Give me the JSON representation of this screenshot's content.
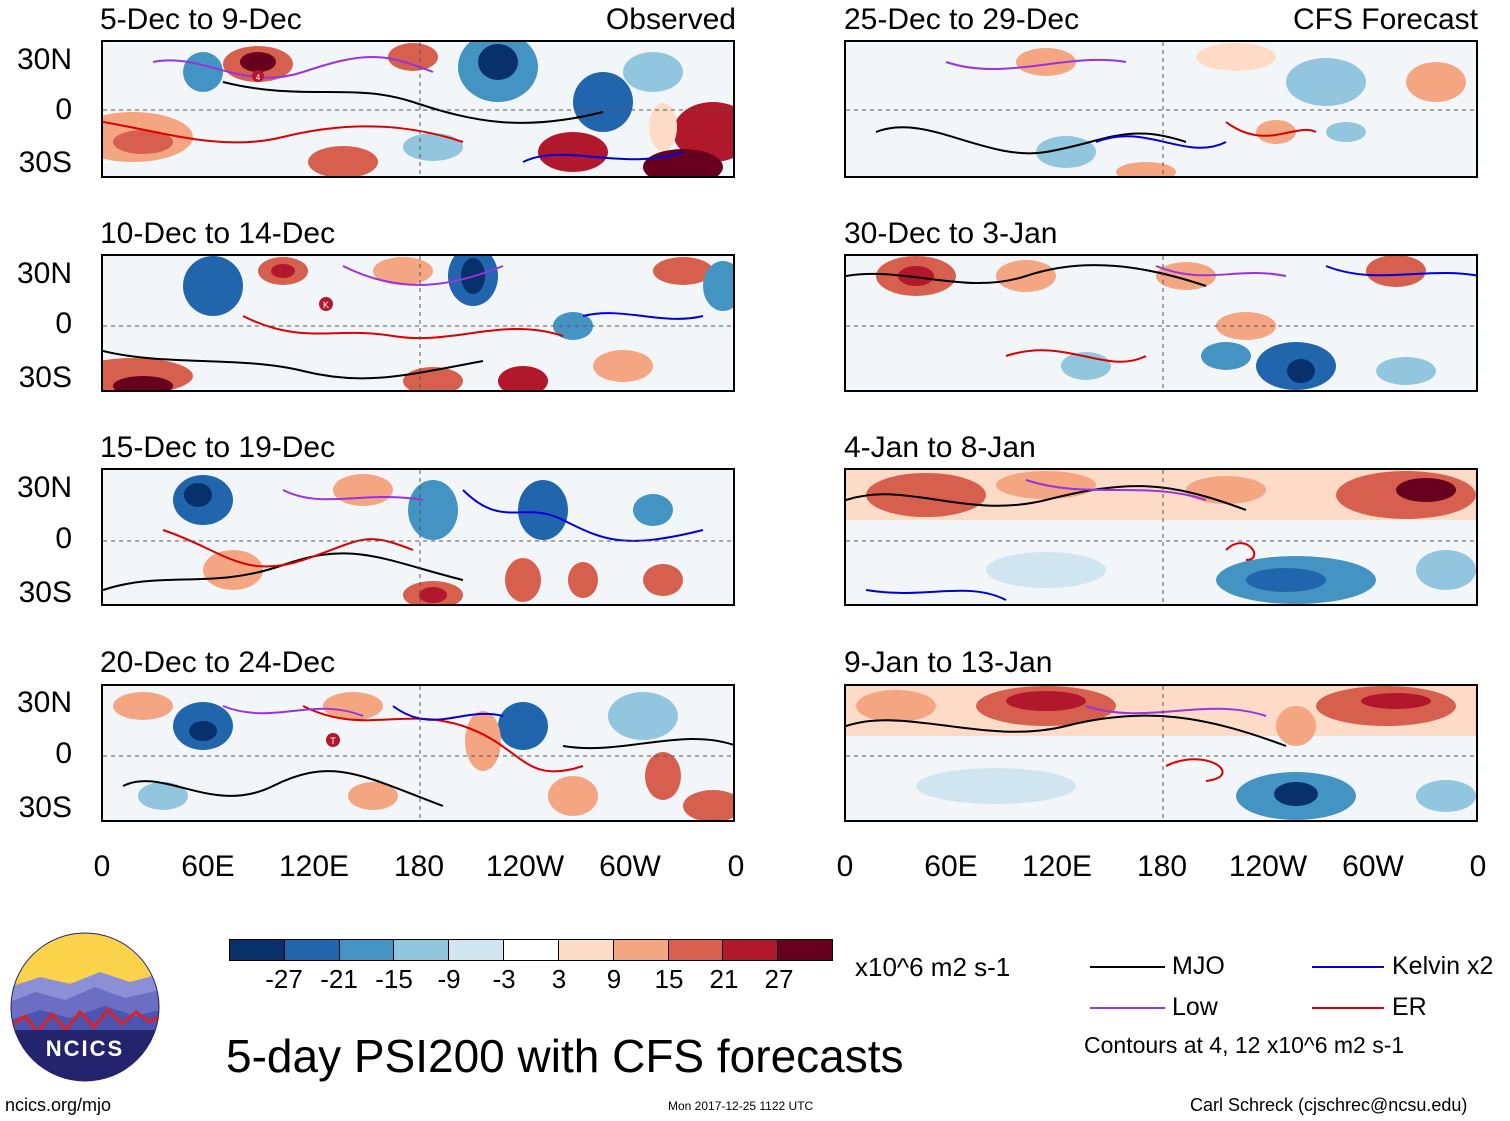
{
  "panels": {
    "left": [
      {
        "title": "5-Dec to 9-Dec",
        "label": "Observed"
      },
      {
        "title": "10-Dec to 14-Dec",
        "label": ""
      },
      {
        "title": "15-Dec to 19-Dec",
        "label": ""
      },
      {
        "title": "20-Dec to 24-Dec",
        "label": ""
      }
    ],
    "right": [
      {
        "title": "25-Dec to 29-Dec",
        "label": "CFS Forecast"
      },
      {
        "title": "30-Dec to 3-Jan",
        "label": ""
      },
      {
        "title": "4-Jan to 8-Jan",
        "label": ""
      },
      {
        "title": "9-Jan to 13-Jan",
        "label": ""
      }
    ]
  },
  "axes": {
    "y_ticks": [
      "30N",
      "0",
      "30S"
    ],
    "x_ticks": [
      "0",
      "60E",
      "120E",
      "180",
      "120W",
      "60W",
      "0"
    ]
  },
  "markers": {
    "k": "K",
    "t": "T",
    "four": "4"
  },
  "colorbar": {
    "labels": [
      "-27",
      "-21",
      "-15",
      "-9",
      "-3",
      "3",
      "9",
      "15",
      "21",
      "27"
    ],
    "colors": [
      "#08306b",
      "#2166ac",
      "#4393c3",
      "#92c5de",
      "#d1e5f0",
      "#ffffff",
      "#fddbc7",
      "#f4a582",
      "#d6604d",
      "#b2182b",
      "#67001f"
    ],
    "units": "x10^6 m2 s-1"
  },
  "legend": {
    "mjo": "MJO",
    "kelvin": "Kelvin x2",
    "low": "Low",
    "er": "ER",
    "contours": "Contours at 4, 12 x10^6 m2 s-1",
    "colors": {
      "mjo": "#000000",
      "kelvin": "#0000dd",
      "low": "#9933dd",
      "er": "#dd0000"
    }
  },
  "main_title": "5-day PSI200 with CFS forecasts",
  "footer": {
    "site": "ncics.org/mjo",
    "timestamp": "Mon 2017-12-25 1122 UTC",
    "author": "Carl Schreck (cjschrec@ncsu.edu)"
  },
  "logo": {
    "text": "NCICS"
  }
}
